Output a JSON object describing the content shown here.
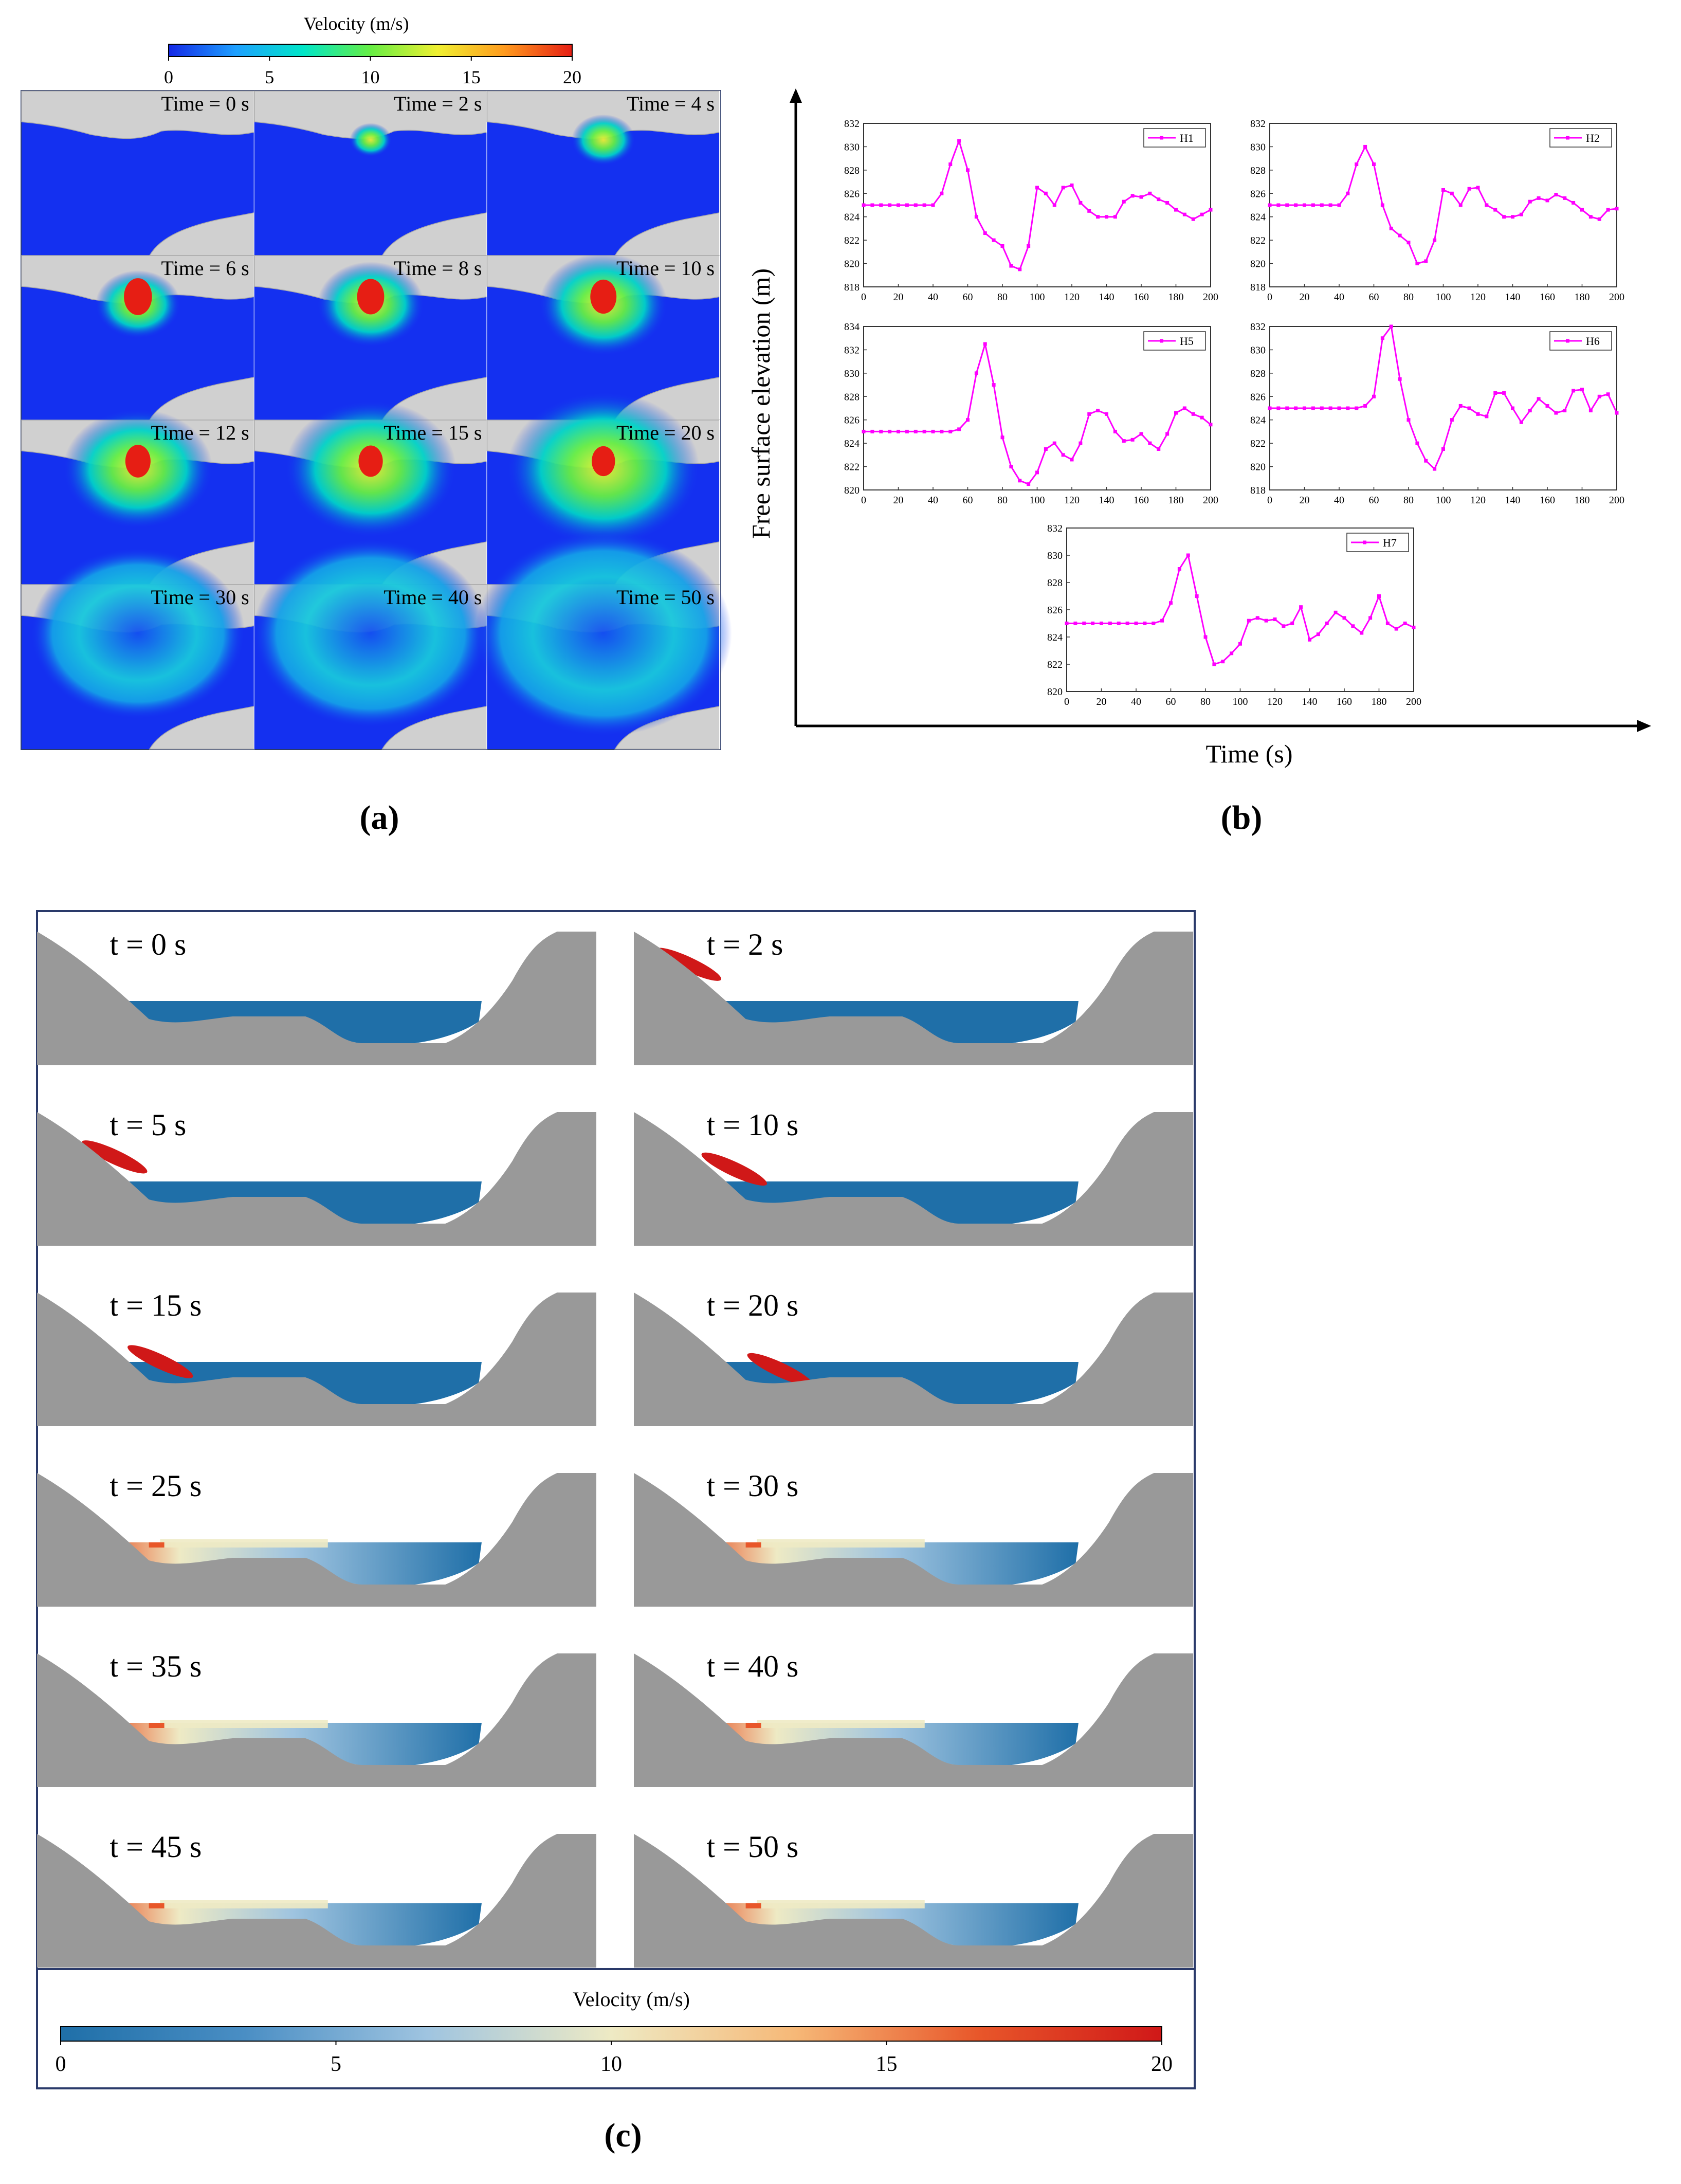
{
  "panel_labels": {
    "a": "(a)",
    "b": "(b)",
    "c": "(c)"
  },
  "panel_a": {
    "colorbar": {
      "title": "Velocity (m/s)",
      "ticks": [
        "0",
        "5",
        "10",
        "15",
        "20"
      ],
      "colors": [
        "#1428e6",
        "#1ea0ff",
        "#00e6c8",
        "#66ee44",
        "#f0f032",
        "#ff9a1e",
        "#e61e14"
      ]
    },
    "frames": [
      "Time = 0 s",
      "Time = 2 s",
      "Time = 4 s",
      "Time = 6 s",
      "Time = 8 s",
      "Time = 10 s",
      "Time = 12 s",
      "Time = 15 s",
      "Time = 20 s",
      "Time = 30 s",
      "Time = 40 s",
      "Time = 50 s"
    ],
    "colors": {
      "water": "#1430f0",
      "terrain": "#d0d0d0",
      "frame_border": "#2a3a6a"
    }
  },
  "chart_data": [
    {
      "type": "line",
      "series": [
        {
          "name": "H1",
          "x": [
            0,
            5,
            10,
            15,
            20,
            25,
            30,
            35,
            40,
            45,
            50,
            55,
            60,
            65,
            70,
            75,
            80,
            85,
            90,
            95,
            100,
            105,
            110,
            115,
            120,
            125,
            130,
            135,
            140,
            145,
            150,
            155,
            160,
            165,
            170,
            175,
            180,
            185,
            190,
            195,
            200
          ],
          "values": [
            825,
            825,
            825,
            825,
            825,
            825,
            825,
            825,
            825,
            826,
            828.5,
            830.5,
            828,
            824,
            822.6,
            822,
            821.5,
            819.8,
            819.5,
            821.5,
            826.5,
            826,
            825,
            826.5,
            826.7,
            825.2,
            824.5,
            824,
            824,
            824,
            825.3,
            825.8,
            825.7,
            826,
            825.5,
            825.2,
            824.6,
            824.2,
            823.8,
            824.2,
            824.6
          ]
        }
      ],
      "xlim": [
        0,
        200
      ],
      "ylim": [
        818,
        832
      ],
      "xticks": [
        0,
        20,
        40,
        60,
        80,
        100,
        120,
        140,
        160,
        180,
        200
      ],
      "yticks": [
        818,
        820,
        822,
        824,
        826,
        828,
        830,
        832
      ],
      "legend": "top-right",
      "color": "#ff00ff"
    },
    {
      "type": "line",
      "series": [
        {
          "name": "H2",
          "x": [
            0,
            5,
            10,
            15,
            20,
            25,
            30,
            35,
            40,
            45,
            50,
            55,
            60,
            65,
            70,
            75,
            80,
            85,
            90,
            95,
            100,
            105,
            110,
            115,
            120,
            125,
            130,
            135,
            140,
            145,
            150,
            155,
            160,
            165,
            170,
            175,
            180,
            185,
            190,
            195,
            200
          ],
          "values": [
            825,
            825,
            825,
            825,
            825,
            825,
            825,
            825,
            825,
            826,
            828.5,
            830,
            828.5,
            825,
            823,
            822.4,
            821.8,
            820,
            820.2,
            822,
            826.3,
            826,
            825,
            826.4,
            826.5,
            825,
            824.6,
            824,
            824,
            824.2,
            825.3,
            825.6,
            825.4,
            825.9,
            825.6,
            825.2,
            824.6,
            824,
            823.8,
            824.6,
            824.7
          ]
        }
      ],
      "xlim": [
        0,
        200
      ],
      "ylim": [
        818,
        832
      ],
      "xticks": [
        0,
        20,
        40,
        60,
        80,
        100,
        120,
        140,
        160,
        180,
        200
      ],
      "yticks": [
        818,
        820,
        822,
        824,
        826,
        828,
        830,
        832
      ],
      "legend": "top-right",
      "color": "#ff00ff"
    },
    {
      "type": "line",
      "series": [
        {
          "name": "H5",
          "x": [
            0,
            5,
            10,
            15,
            20,
            25,
            30,
            35,
            40,
            45,
            50,
            55,
            60,
            65,
            70,
            75,
            80,
            85,
            90,
            95,
            100,
            105,
            110,
            115,
            120,
            125,
            130,
            135,
            140,
            145,
            150,
            155,
            160,
            165,
            170,
            175,
            180,
            185,
            190,
            195,
            200
          ],
          "values": [
            825,
            825,
            825,
            825,
            825,
            825,
            825,
            825,
            825,
            825,
            825,
            825.2,
            826,
            830,
            832.5,
            829,
            824.5,
            822,
            820.8,
            820.5,
            821.5,
            823.5,
            824,
            823,
            822.6,
            824,
            826.5,
            826.8,
            826.5,
            825,
            824.2,
            824.3,
            824.8,
            824,
            823.5,
            824.8,
            826.6,
            827,
            826.5,
            826.2,
            825.6
          ]
        }
      ],
      "xlim": [
        0,
        200
      ],
      "ylim": [
        820,
        834
      ],
      "xticks": [
        0,
        20,
        40,
        60,
        80,
        100,
        120,
        140,
        160,
        180,
        200
      ],
      "yticks": [
        820,
        822,
        824,
        826,
        828,
        830,
        832,
        834
      ],
      "legend": "top-right",
      "color": "#ff00ff"
    },
    {
      "type": "line",
      "series": [
        {
          "name": "H6",
          "x": [
            0,
            5,
            10,
            15,
            20,
            25,
            30,
            35,
            40,
            45,
            50,
            55,
            60,
            65,
            70,
            75,
            80,
            85,
            90,
            95,
            100,
            105,
            110,
            115,
            120,
            125,
            130,
            135,
            140,
            145,
            150,
            155,
            160,
            165,
            170,
            175,
            180,
            185,
            190,
            195,
            200
          ],
          "values": [
            825,
            825,
            825,
            825,
            825,
            825,
            825,
            825,
            825,
            825,
            825,
            825.2,
            826,
            831,
            832,
            827.5,
            824,
            822,
            820.5,
            819.8,
            821.5,
            824,
            825.2,
            825,
            824.5,
            824.3,
            826.3,
            826.3,
            825,
            823.8,
            824.8,
            825.8,
            825.2,
            824.6,
            824.8,
            826.5,
            826.6,
            824.8,
            826,
            826.2,
            824.6
          ]
        }
      ],
      "xlim": [
        0,
        200
      ],
      "ylim": [
        818,
        832
      ],
      "xticks": [
        0,
        20,
        40,
        60,
        80,
        100,
        120,
        140,
        160,
        180,
        200
      ],
      "yticks": [
        818,
        820,
        822,
        824,
        826,
        828,
        830,
        832
      ],
      "legend": "top-right",
      "color": "#ff00ff"
    },
    {
      "type": "line",
      "series": [
        {
          "name": "H7",
          "x": [
            0,
            5,
            10,
            15,
            20,
            25,
            30,
            35,
            40,
            45,
            50,
            55,
            60,
            65,
            70,
            75,
            80,
            85,
            90,
            95,
            100,
            105,
            110,
            115,
            120,
            125,
            130,
            135,
            140,
            145,
            150,
            155,
            160,
            165,
            170,
            175,
            180,
            185,
            190,
            195,
            200
          ],
          "values": [
            825,
            825,
            825,
            825,
            825,
            825,
            825,
            825,
            825,
            825,
            825,
            825.2,
            826.5,
            829,
            830,
            827,
            824,
            822,
            822.2,
            822.8,
            823.5,
            825.2,
            825.4,
            825.2,
            825.3,
            824.8,
            825,
            826.2,
            823.8,
            824.2,
            825,
            825.8,
            825.4,
            824.8,
            824.3,
            825.4,
            827,
            825,
            824.6,
            825,
            824.7
          ]
        }
      ],
      "xlim": [
        0,
        200
      ],
      "ylim": [
        820,
        832
      ],
      "xticks": [
        0,
        20,
        40,
        60,
        80,
        100,
        120,
        140,
        160,
        180,
        200
      ],
      "yticks": [
        820,
        822,
        824,
        826,
        828,
        830,
        832
      ],
      "legend": "top-right",
      "color": "#ff00ff"
    }
  ],
  "panel_b": {
    "xlabel": "Time (s)",
    "ylabel": "Free surface elevation (m)"
  },
  "panel_c": {
    "frames": [
      "t = 0 s",
      "t = 2 s",
      "t = 5 s",
      "t = 10 s",
      "t = 15 s",
      "t = 20 s",
      "t = 25 s",
      "t = 30 s",
      "t = 35 s",
      "t = 40 s",
      "t = 45 s",
      "t = 50 s"
    ],
    "colorbar": {
      "title": "Velocity (m/s)",
      "ticks": [
        "0",
        "5",
        "10",
        "15",
        "20"
      ],
      "colors": [
        "#1f6fa8",
        "#4a8ec4",
        "#9fc4e0",
        "#eeeac4",
        "#f6b877",
        "#e8572a",
        "#d01818"
      ]
    },
    "colors": {
      "terrain": "#999999",
      "water": "#1f6fa8",
      "frame_border": "#2a3a6a"
    }
  }
}
